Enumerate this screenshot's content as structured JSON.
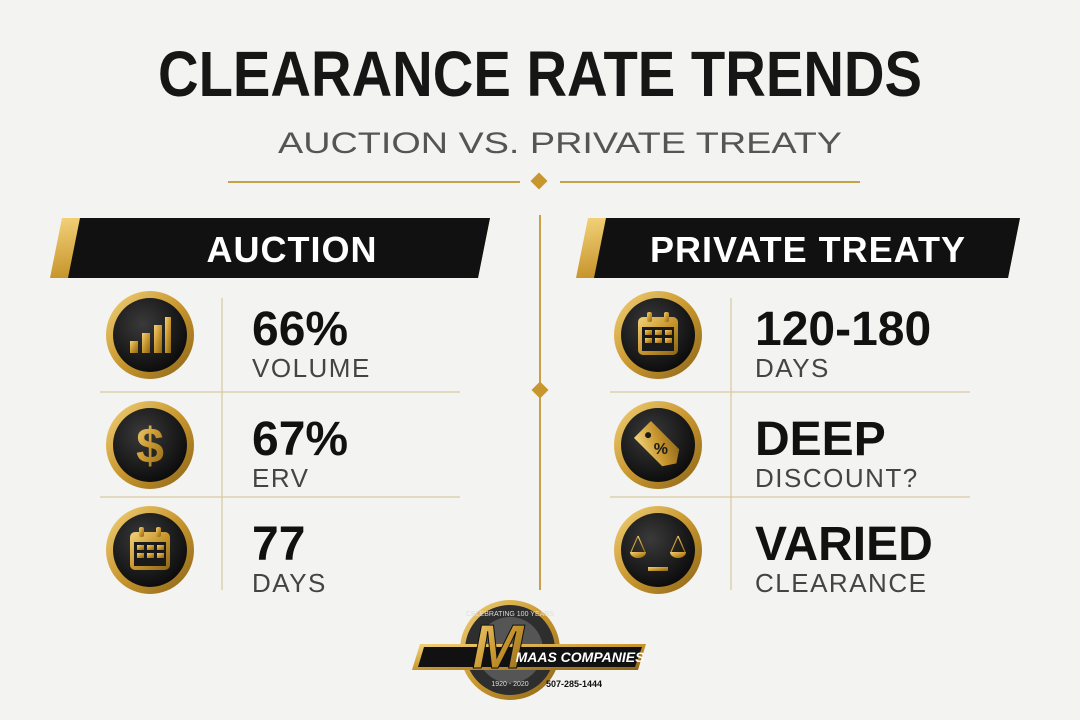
{
  "header": {
    "title": "CLEARANCE RATE TRENDS",
    "subtitle": "AUCTION VS. PRIVATE TREATY"
  },
  "columns": [
    {
      "heading": "AUCTION",
      "items": [
        {
          "figure": "66%",
          "label": "VOLUME"
        },
        {
          "figure": "67%",
          "label": "ERV"
        },
        {
          "figure": "77",
          "label": "DAYS"
        }
      ]
    },
    {
      "heading": "PRIVATE TREATY",
      "items": [
        {
          "figure": "120-180",
          "label": "DAYS"
        },
        {
          "figure": "DEEP",
          "label": "DISCOUNT?"
        },
        {
          "figure": "VARIED",
          "label": "CLEARANCE"
        }
      ]
    }
  ],
  "logo": {
    "name": "MAAS COMPANIES",
    "ring": "CELEBRATING 100 YEARS",
    "years": "1920 - 2020",
    "phone": "507-285-1444"
  }
}
